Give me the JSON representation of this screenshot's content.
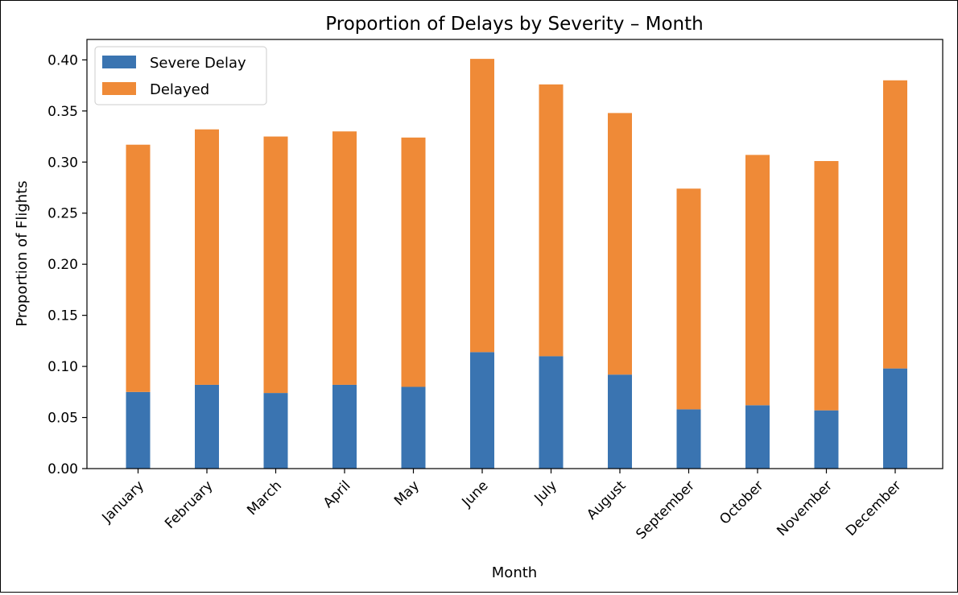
{
  "chart_data": {
    "type": "bar",
    "stacked": true,
    "title": "Proportion of Delays by Severity – Month",
    "xlabel": "Month",
    "ylabel": "Proportion of Flights",
    "ylim": [
      0,
      0.42
    ],
    "yticks": [
      "0.00",
      "0.05",
      "0.10",
      "0.15",
      "0.20",
      "0.25",
      "0.30",
      "0.35",
      "0.40"
    ],
    "legend_position": "top-left",
    "grid": false,
    "categories": [
      "January",
      "February",
      "March",
      "April",
      "May",
      "June",
      "July",
      "August",
      "September",
      "October",
      "November",
      "December"
    ],
    "series": [
      {
        "name": "Severe Delay",
        "color": "#3a74b1",
        "values": [
          0.075,
          0.082,
          0.074,
          0.082,
          0.08,
          0.114,
          0.11,
          0.092,
          0.058,
          0.062,
          0.057,
          0.098
        ]
      },
      {
        "name": "Delayed",
        "color": "#ef8a37",
        "values": [
          0.242,
          0.25,
          0.251,
          0.248,
          0.244,
          0.287,
          0.266,
          0.256,
          0.216,
          0.245,
          0.244,
          0.282
        ]
      }
    ]
  }
}
